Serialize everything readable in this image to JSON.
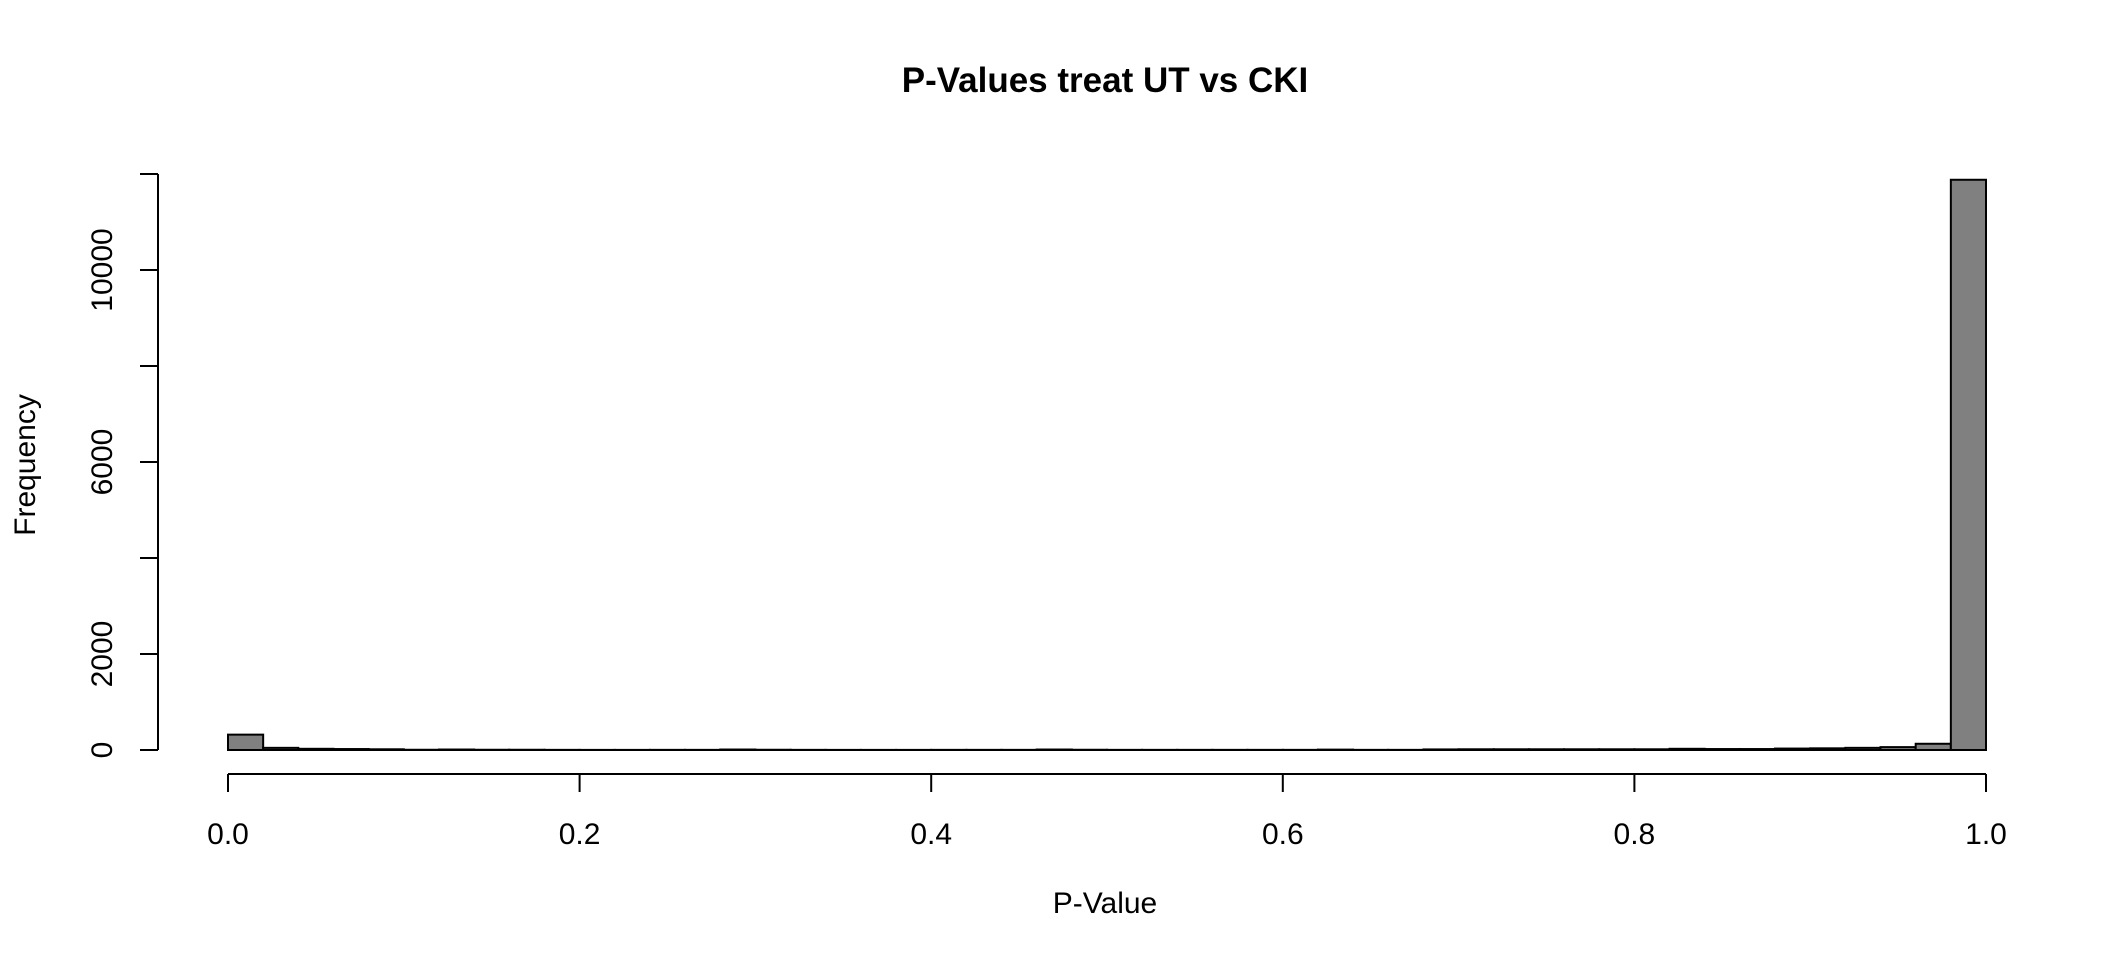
{
  "chart_data": {
    "type": "bar",
    "title": "P-Values treat UT vs CKI",
    "xlabel": "P-Value",
    "ylabel": "Frequency",
    "xlim": [
      0,
      1
    ],
    "ylim": [
      0,
      12000
    ],
    "x_ticks": [
      "0.0",
      "0.2",
      "0.4",
      "0.6",
      "0.8",
      "1.0"
    ],
    "x_tick_values": [
      0,
      0.2,
      0.4,
      0.6,
      0.8,
      1.0
    ],
    "y_ticks": [
      "0",
      "2000",
      "6000",
      "10000"
    ],
    "y_tick_values": [
      0,
      2000,
      4000,
      6000,
      8000,
      10000,
      12000
    ],
    "bin_width": 0.02,
    "bin_starts": [
      0.0,
      0.02,
      0.04,
      0.06,
      0.08,
      0.1,
      0.12,
      0.14,
      0.16,
      0.18,
      0.2,
      0.22,
      0.24,
      0.26,
      0.28,
      0.3,
      0.32,
      0.34,
      0.36,
      0.38,
      0.4,
      0.42,
      0.44,
      0.46,
      0.48,
      0.5,
      0.52,
      0.54,
      0.56,
      0.58,
      0.6,
      0.62,
      0.64,
      0.66,
      0.68,
      0.7,
      0.72,
      0.74,
      0.76,
      0.78,
      0.8,
      0.82,
      0.84,
      0.86,
      0.88,
      0.9,
      0.92,
      0.94,
      0.96,
      0.98
    ],
    "values": [
      320,
      45,
      25,
      20,
      15,
      5,
      10,
      5,
      5,
      3,
      2,
      2,
      3,
      3,
      10,
      5,
      3,
      2,
      2,
      2,
      3,
      3,
      3,
      10,
      5,
      3,
      3,
      3,
      3,
      3,
      3,
      8,
      3,
      3,
      12,
      15,
      15,
      15,
      15,
      15,
      15,
      25,
      20,
      20,
      30,
      35,
      45,
      60,
      130,
      11880
    ],
    "bar_color": "#808080",
    "grid": false,
    "legend": "none"
  }
}
